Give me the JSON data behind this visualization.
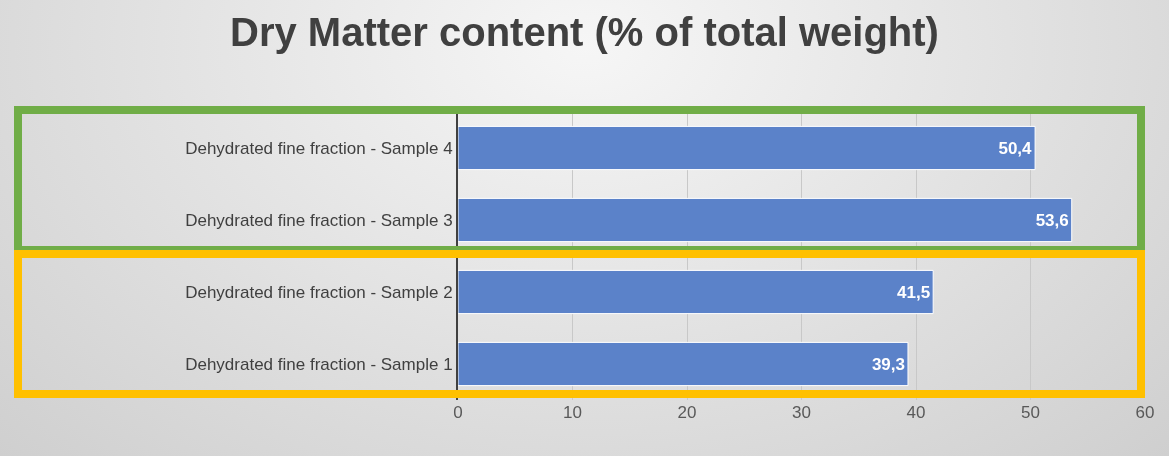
{
  "chart_data": {
    "type": "bar",
    "orientation": "horizontal",
    "title": "Dry Matter content (% of total weight)",
    "categories": [
      "Dehydrated fine fraction - Sample 4",
      "Dehydrated fine fraction - Sample 3",
      "Dehydrated fine fraction - Sample 2",
      "Dehydrated fine fraction - Sample 1"
    ],
    "values": [
      50.4,
      53.6,
      41.5,
      39.3
    ],
    "value_labels": [
      "50,4",
      "53,6",
      "41,5",
      "39,3"
    ],
    "color": "#5b82c9",
    "xlim": [
      0,
      60
    ],
    "xticks": [
      0,
      10,
      20,
      30,
      40,
      50,
      60
    ],
    "grid": "x"
  }
}
